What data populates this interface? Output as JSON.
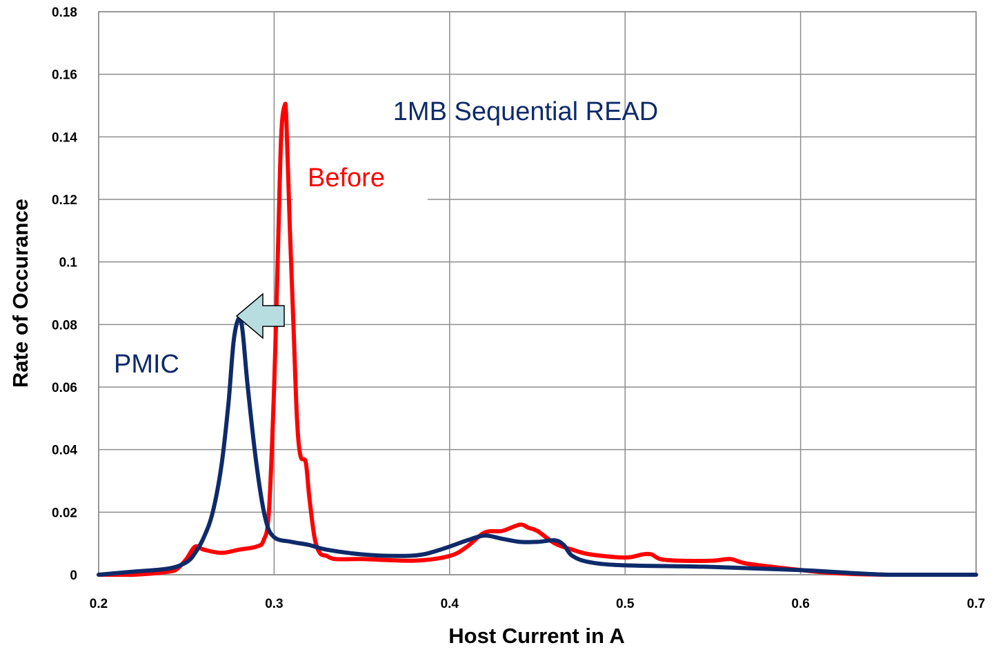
{
  "chart_data": {
    "type": "line",
    "title": "",
    "xlabel": "Host Current in A",
    "ylabel": "Rate of Occurance",
    "xlim": [
      0.2,
      0.7
    ],
    "ylim": [
      0,
      0.18
    ],
    "xticks": [
      0.2,
      0.3,
      0.4,
      0.5,
      0.6,
      0.7
    ],
    "xtick_labels": [
      "0.2",
      "0.3",
      "0.4",
      "0.5",
      "0.6",
      "0.7"
    ],
    "yticks": [
      0,
      0.02,
      0.04,
      0.06,
      0.08,
      0.1,
      0.12,
      0.14,
      0.16,
      0.18
    ],
    "ytick_labels": [
      "0",
      "0.02",
      "0.04",
      "0.06",
      "0.08",
      "0.1",
      "0.12",
      "0.14",
      "0.16",
      "0.18"
    ],
    "grid": true,
    "legend": "none",
    "series": [
      {
        "color": "#ff0000",
        "x": [
          0.2,
          0.22,
          0.24,
          0.245,
          0.25,
          0.255,
          0.26,
          0.27,
          0.28,
          0.29,
          0.294,
          0.297,
          0.3,
          0.302,
          0.304,
          0.306,
          0.307,
          0.309,
          0.311,
          0.313,
          0.315,
          0.318,
          0.32,
          0.323,
          0.326,
          0.33,
          0.335,
          0.35,
          0.38,
          0.4,
          0.41,
          0.42,
          0.43,
          0.44,
          0.445,
          0.45,
          0.46,
          0.47,
          0.48,
          0.5,
          0.51,
          0.515,
          0.52,
          0.53,
          0.55,
          0.56,
          0.57,
          0.6,
          0.62,
          0.65,
          0.7
        ],
        "y": [
          0,
          0,
          0.001,
          0.002,
          0.005,
          0.009,
          0.008,
          0.007,
          0.008,
          0.009,
          0.011,
          0.02,
          0.06,
          0.1,
          0.14,
          0.15,
          0.145,
          0.11,
          0.08,
          0.05,
          0.038,
          0.036,
          0.025,
          0.012,
          0.007,
          0.006,
          0.005,
          0.005,
          0.0045,
          0.006,
          0.009,
          0.0135,
          0.014,
          0.016,
          0.015,
          0.014,
          0.01,
          0.008,
          0.0065,
          0.0055,
          0.0065,
          0.0065,
          0.005,
          0.0045,
          0.0045,
          0.005,
          0.0035,
          0.0015,
          0.0005,
          0,
          0
        ]
      },
      {
        "color": "#0e2a6a",
        "x": [
          0.2,
          0.22,
          0.24,
          0.25,
          0.255,
          0.26,
          0.265,
          0.27,
          0.274,
          0.277,
          0.28,
          0.282,
          0.285,
          0.29,
          0.295,
          0.3,
          0.31,
          0.32,
          0.33,
          0.35,
          0.37,
          0.385,
          0.4,
          0.41,
          0.42,
          0.43,
          0.44,
          0.45,
          0.46,
          0.465,
          0.47,
          0.48,
          0.5,
          0.55,
          0.6,
          0.65,
          0.7
        ],
        "y": [
          0,
          0.001,
          0.002,
          0.004,
          0.007,
          0.012,
          0.02,
          0.035,
          0.055,
          0.075,
          0.082,
          0.078,
          0.06,
          0.035,
          0.018,
          0.012,
          0.0105,
          0.0095,
          0.008,
          0.0065,
          0.006,
          0.0065,
          0.009,
          0.011,
          0.0125,
          0.0115,
          0.0105,
          0.0105,
          0.011,
          0.0095,
          0.006,
          0.004,
          0.003,
          0.0025,
          0.0015,
          0,
          0
        ]
      }
    ],
    "annotations": [
      {
        "text": "1MB Sequential READ",
        "color": "#0e2a6a"
      },
      {
        "text": "Before",
        "color": "#ff0000"
      },
      {
        "text": "PMIC",
        "color": "#0e2a6a"
      }
    ]
  }
}
